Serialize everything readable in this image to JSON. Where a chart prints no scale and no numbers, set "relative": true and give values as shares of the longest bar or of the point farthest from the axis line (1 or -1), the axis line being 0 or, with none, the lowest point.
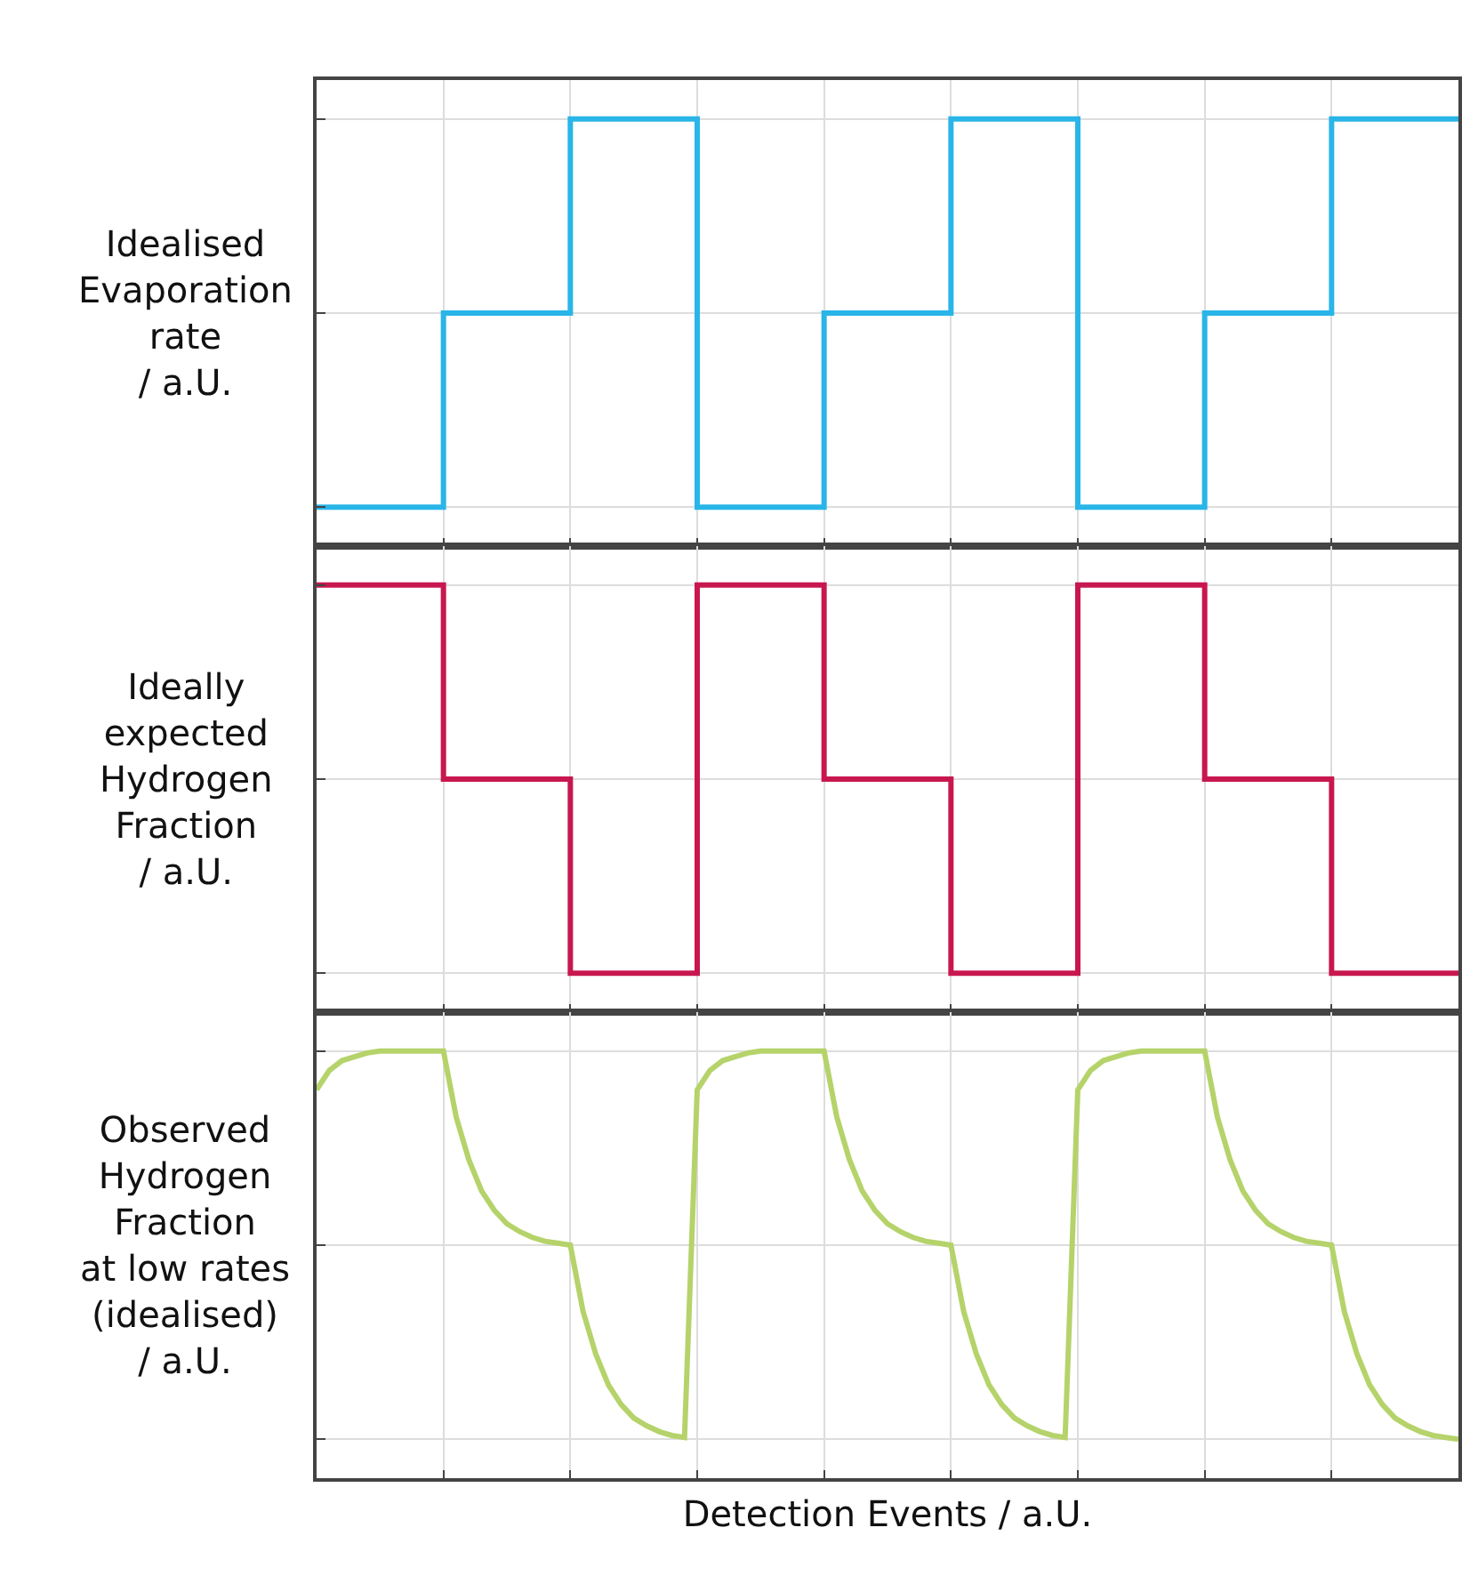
{
  "chart_data": [
    {
      "type": "step",
      "relative": true,
      "ylabel": "Idealised\nEvaporation\nrate\n/ a.U.",
      "categories": [
        null,
        null,
        null,
        null,
        null,
        null,
        null,
        null,
        null,
        null
      ],
      "grid": true,
      "series": [
        {
          "color": "#29b5e8",
          "values": [
            0,
            0.5,
            1,
            0,
            0.5,
            1,
            0,
            0.5,
            1,
            1
          ]
        }
      ]
    },
    {
      "type": "step",
      "relative": true,
      "ylabel": "Ideally\nexpected\nHydrogen\nFraction\n/ a.U.",
      "categories": [
        null,
        null,
        null,
        null,
        null,
        null,
        null,
        null,
        null,
        null
      ],
      "grid": true,
      "series": [
        {
          "color": "#c8174f",
          "values": [
            1,
            0.5,
            0,
            1,
            0.5,
            0,
            1,
            0.5,
            0,
            0
          ]
        }
      ]
    },
    {
      "type": "line",
      "relative": true,
      "ylabel": "Observed\nHydrogen\nFraction\nat low rates\n(idealised)\n/ a.U.",
      "xlabel": "Detection Events / a.U.",
      "grid": true,
      "categories": [
        null,
        null,
        null,
        null,
        null,
        null,
        null,
        null,
        null,
        null,
        null,
        null,
        null,
        null,
        null,
        null,
        null,
        null,
        null,
        null,
        null,
        null,
        null,
        null,
        null,
        null,
        null,
        null,
        null,
        null,
        null,
        null,
        null,
        null,
        null,
        null,
        null,
        null,
        null,
        null,
        null,
        null,
        null,
        null,
        null,
        null,
        null,
        null,
        null,
        null,
        null,
        null,
        null,
        null,
        null,
        null,
        null,
        null,
        null,
        null,
        null,
        null,
        null,
        null,
        null,
        null,
        null,
        null,
        null,
        null,
        null,
        null,
        null,
        null,
        null,
        null,
        null,
        null,
        null,
        null,
        null,
        null,
        null,
        null,
        null,
        null,
        null,
        null,
        null,
        null,
        null
      ],
      "series": [
        {
          "color": "#b5d36a",
          "values": [
            0.9,
            0.95,
            0.975,
            0.985,
            0.995,
            1,
            1,
            1,
            1,
            1,
            1,
            0.83,
            0.72,
            0.64,
            0.59,
            0.555,
            0.535,
            0.52,
            0.51,
            0.505,
            0.5,
            0.33,
            0.22,
            0.14,
            0.09,
            0.055,
            0.035,
            0.02,
            0.01,
            0.005,
            0.9,
            0.95,
            0.975,
            0.985,
            0.995,
            1,
            1,
            1,
            1,
            1,
            1,
            0.83,
            0.72,
            0.64,
            0.59,
            0.555,
            0.535,
            0.52,
            0.51,
            0.505,
            0.5,
            0.33,
            0.22,
            0.14,
            0.09,
            0.055,
            0.035,
            0.02,
            0.01,
            0.005,
            0.9,
            0.95,
            0.975,
            0.985,
            0.995,
            1,
            1,
            1,
            1,
            1,
            1,
            0.83,
            0.72,
            0.64,
            0.59,
            0.555,
            0.535,
            0.52,
            0.51,
            0.505,
            0.5,
            0.33,
            0.22,
            0.14,
            0.09,
            0.055,
            0.035,
            0.02,
            0.01,
            0.005,
            0
          ]
        }
      ]
    }
  ]
}
